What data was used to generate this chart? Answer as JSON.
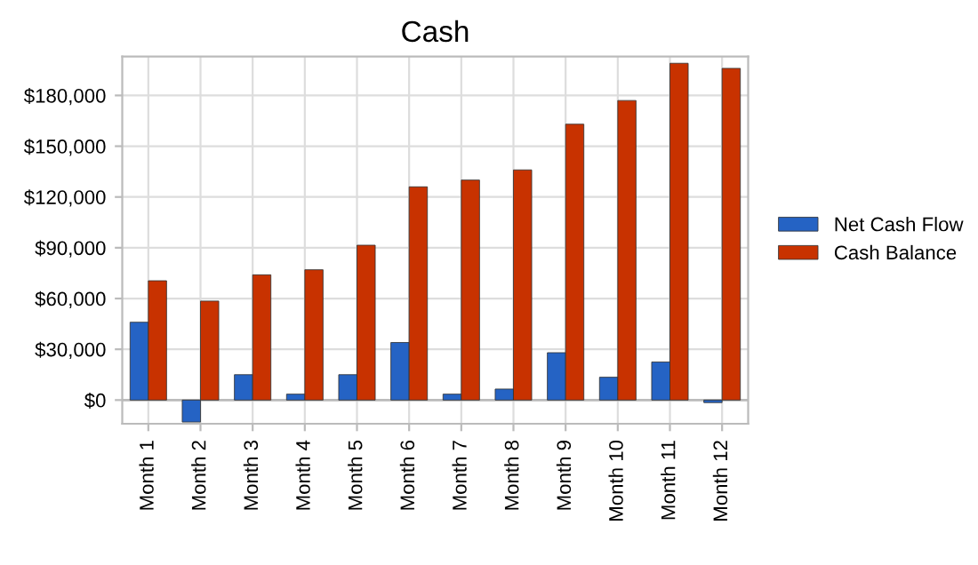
{
  "chart_data": {
    "type": "bar",
    "title": "Cash",
    "categories": [
      "Month 1",
      "Month 2",
      "Month 3",
      "Month 4",
      "Month 5",
      "Month 6",
      "Month 7",
      "Month 8",
      "Month 9",
      "Month 10",
      "Month 11",
      "Month 12"
    ],
    "series": [
      {
        "name": "Net Cash Flow",
        "color": "#2563c4",
        "values": [
          46000,
          -13000,
          15000,
          3500,
          15000,
          34000,
          3500,
          6500,
          28000,
          13500,
          22500,
          -1500
        ]
      },
      {
        "name": "Cash Balance",
        "color": "#c83200",
        "values": [
          70500,
          58500,
          74000,
          77000,
          91500,
          126000,
          130000,
          136000,
          163000,
          177000,
          199000,
          196000
        ]
      }
    ],
    "ylim": [
      -14000,
      203000
    ],
    "yticks": [
      {
        "value": 0,
        "label": "$0"
      },
      {
        "value": 30000,
        "label": "$30,000"
      },
      {
        "value": 60000,
        "label": "$60,000"
      },
      {
        "value": 90000,
        "label": "$90,000"
      },
      {
        "value": 120000,
        "label": "$120,000"
      },
      {
        "value": 150000,
        "label": "$150,000"
      },
      {
        "value": 180000,
        "label": "$180,000"
      }
    ],
    "grid": true,
    "legend": "right"
  }
}
